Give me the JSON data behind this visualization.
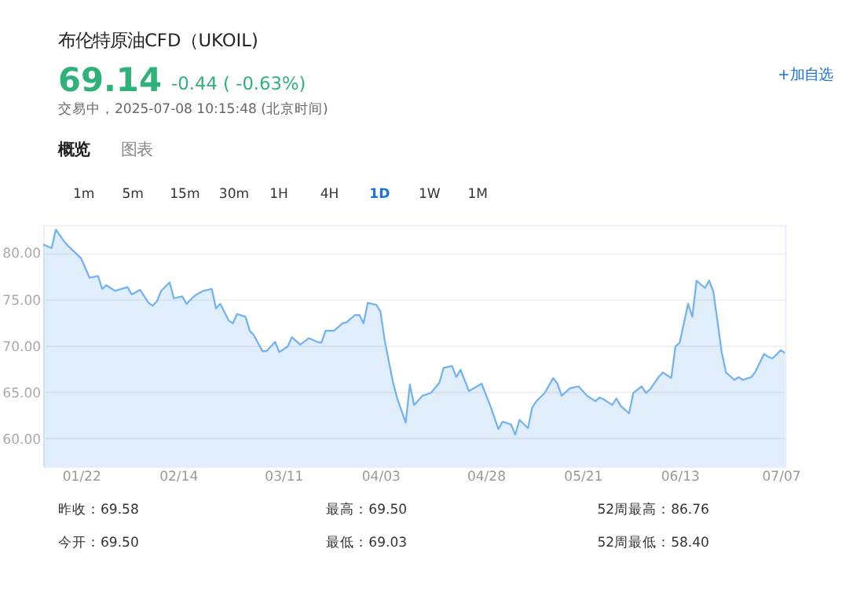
{
  "chart_data": {
    "type": "area",
    "title": "布伦特原油CFD（UKOIL)",
    "annotations": [
      "69.14",
      "-0.44 ( -0.63%)",
      "交易中，2025-07-08 10:15:48 (北京时间)",
      "+加自选",
      "概览",
      "图表",
      "1m",
      "5m",
      "15m",
      "30m",
      "1H",
      "4H",
      "1D",
      "1W",
      "1M",
      "昨收：69.58",
      "最高：69.50",
      "52周最高：86.76",
      "今开：69.50",
      "最低：69.03",
      "52周最低：58.40"
    ],
    "x": [
      "2025-01-13",
      "2025-01-15",
      "2025-01-16",
      "2025-01-18",
      "2025-01-19",
      "2025-01-22",
      "2025-01-24",
      "2025-01-26",
      "2025-01-27",
      "2025-01-28",
      "2025-01-30",
      "2025-02-02",
      "2025-02-03",
      "2025-02-05",
      "2025-02-07",
      "2025-02-08",
      "2025-02-09",
      "2025-02-10",
      "2025-02-12",
      "2025-02-13",
      "2025-02-15",
      "2025-02-16",
      "2025-02-18",
      "2025-02-20",
      "2025-02-22",
      "2025-02-23",
      "2025-02-24",
      "2025-02-26",
      "2025-02-27",
      "2025-02-28",
      "2025-03-02",
      "2025-03-03",
      "2025-03-04",
      "2025-03-06",
      "2025-03-07",
      "2025-03-09",
      "2025-03-10",
      "2025-03-12",
      "2025-03-13",
      "2025-03-15",
      "2025-03-17",
      "2025-03-19",
      "2025-03-20",
      "2025-03-21",
      "2025-03-23",
      "2025-03-25",
      "2025-03-26",
      "2025-03-28",
      "2025-03-29",
      "2025-03-30",
      "2025-03-31",
      "2025-04-02",
      "2025-04-03",
      "2025-04-04",
      "2025-04-06",
      "2025-04-07",
      "2025-04-09",
      "2025-04-10",
      "2025-04-11",
      "2025-04-13",
      "2025-04-15",
      "2025-04-17",
      "2025-04-18",
      "2025-04-20",
      "2025-04-21",
      "2025-04-22",
      "2025-04-24",
      "2025-04-27",
      "2025-04-29",
      "2025-05-01",
      "2025-05-02",
      "2025-05-04",
      "2025-05-05",
      "2025-05-06",
      "2025-05-08",
      "2025-05-09",
      "2025-05-10",
      "2025-05-12",
      "2025-05-14",
      "2025-05-15",
      "2025-05-16",
      "2025-05-18",
      "2025-05-20",
      "2025-05-22",
      "2025-05-24",
      "2025-05-25",
      "2025-05-26",
      "2025-05-28",
      "2025-05-29",
      "2025-05-30",
      "2025-06-01",
      "2025-06-02",
      "2025-06-04",
      "2025-06-05",
      "2025-06-06",
      "2025-06-08",
      "2025-06-09",
      "2025-06-11",
      "2025-06-12",
      "2025-06-13",
      "2025-06-15",
      "2025-06-16",
      "2025-06-17",
      "2025-06-19",
      "2025-06-20",
      "2025-06-21",
      "2025-06-23",
      "2025-06-24",
      "2025-06-26",
      "2025-06-27",
      "2025-06-28",
      "2025-06-30",
      "2025-07-01",
      "2025-07-03",
      "2025-07-04",
      "2025-07-05",
      "2025-07-07",
      "2025-07-08"
    ],
    "series": [
      {
        "color": "#74b3f0",
        "values": [
          80.9,
          80.5,
          82.5,
          81.2,
          80.7,
          79.4,
          77.3,
          77.5,
          76.1,
          76.5,
          75.9,
          76.3,
          75.5,
          76.0,
          74.6,
          74.3,
          74.8,
          75.9,
          76.8,
          75.1,
          75.3,
          74.5,
          75.4,
          75.9,
          76.1,
          74.0,
          74.5,
          72.7,
          72.4,
          73.4,
          73.1,
          71.6,
          71.1,
          69.4,
          69.4,
          70.4,
          69.3,
          69.9,
          70.9,
          70.1,
          70.8,
          70.4,
          70.3,
          71.6,
          71.6,
          72.4,
          72.5,
          73.3,
          73.3,
          72.4,
          74.6,
          74.4,
          73.7,
          70.6,
          66.0,
          64.3,
          61.7,
          65.8,
          63.6,
          64.6,
          64.9,
          66.0,
          67.6,
          67.8,
          66.6,
          67.4,
          65.1,
          65.9,
          63.6,
          61.0,
          61.8,
          61.5,
          60.4,
          62.0,
          61.1,
          63.3,
          64.0,
          64.9,
          66.5,
          65.9,
          64.6,
          65.4,
          65.6,
          64.6,
          64.0,
          64.4,
          64.2,
          63.6,
          64.3,
          63.5,
          62.7,
          64.9,
          65.6,
          64.9,
          65.3,
          66.6,
          67.1,
          66.5,
          69.9,
          70.3,
          74.5,
          73.1,
          77.0,
          76.2,
          77.0,
          75.8,
          69.2,
          67.1,
          66.3,
          66.6,
          66.3,
          66.6,
          67.2,
          69.1,
          68.8,
          68.6,
          69.5,
          69.2
        ]
      }
    ],
    "xlim": [
      "2025-01-13",
      "2025-07-08"
    ],
    "xticks": [
      {
        "value": "2025-01-22",
        "label": "01/22"
      },
      {
        "value": "2025-02-14",
        "label": "02/14"
      },
      {
        "value": "2025-03-11",
        "label": "03/11"
      },
      {
        "value": "2025-04-03",
        "label": "04/03"
      },
      {
        "value": "2025-04-28",
        "label": "04/28"
      },
      {
        "value": "2025-05-21",
        "label": "05/21"
      },
      {
        "value": "2025-06-13",
        "label": "06/13"
      },
      {
        "value": "2025-07-07",
        "label": "07/07"
      }
    ],
    "ylim": [
      57,
      83
    ],
    "yticks": [
      {
        "value": 60,
        "label": "60.00"
      },
      {
        "value": 65,
        "label": "65.00"
      },
      {
        "value": 70,
        "label": "70.00"
      },
      {
        "value": 75,
        "label": "75.00"
      },
      {
        "value": 80,
        "label": "80.00"
      }
    ],
    "grid": "y"
  }
}
